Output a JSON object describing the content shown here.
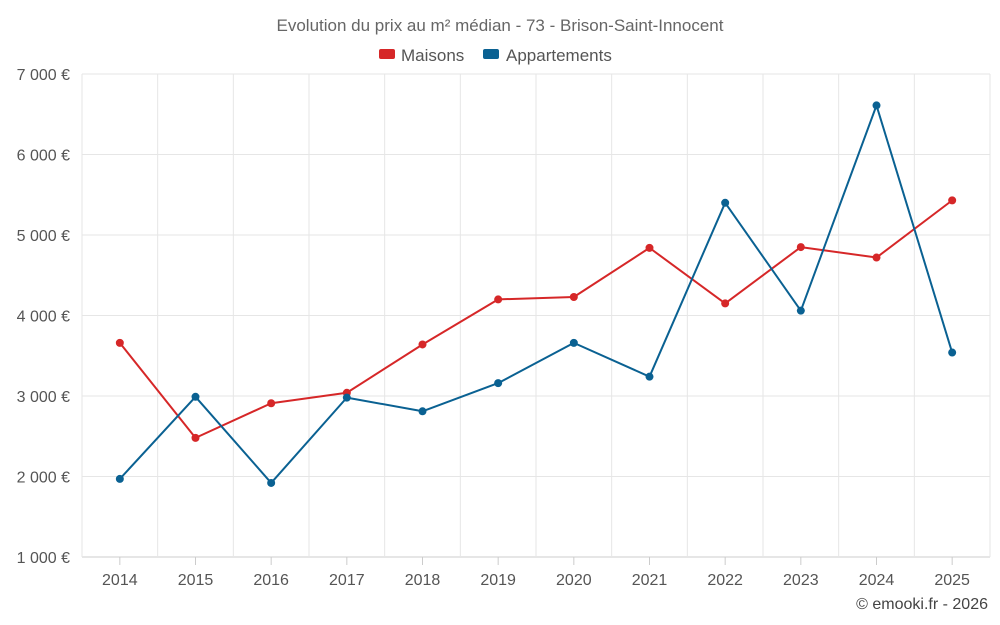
{
  "chart_data": {
    "type": "line",
    "title": "Evolution du prix au m² médian - 73 - Brison-Saint-Innocent",
    "categories": [
      "2014",
      "2015",
      "2016",
      "2017",
      "2018",
      "2019",
      "2020",
      "2021",
      "2022",
      "2023",
      "2024",
      "2025"
    ],
    "series": [
      {
        "name": "Maisons",
        "color": "#d62728",
        "values": [
          3660,
          2480,
          2910,
          3040,
          3640,
          4200,
          4230,
          4840,
          4150,
          4850,
          4720,
          5430
        ]
      },
      {
        "name": "Appartements",
        "color": "#0a6192",
        "values": [
          1970,
          2990,
          1920,
          2980,
          2810,
          3160,
          3660,
          3240,
          5400,
          4060,
          6610,
          3540
        ]
      }
    ],
    "ylim": [
      1000,
      7000
    ],
    "yticks": [
      1000,
      2000,
      3000,
      4000,
      5000,
      6000,
      7000
    ],
    "ytick_labels": [
      "1 000 €",
      "2 000 €",
      "3 000 €",
      "4 000 €",
      "5 000 €",
      "6 000 €",
      "7 000 €"
    ],
    "xlabel": "",
    "ylabel": "",
    "legend_position": "top-center",
    "grid": true
  },
  "credit": "© emooki.fr - 2026"
}
